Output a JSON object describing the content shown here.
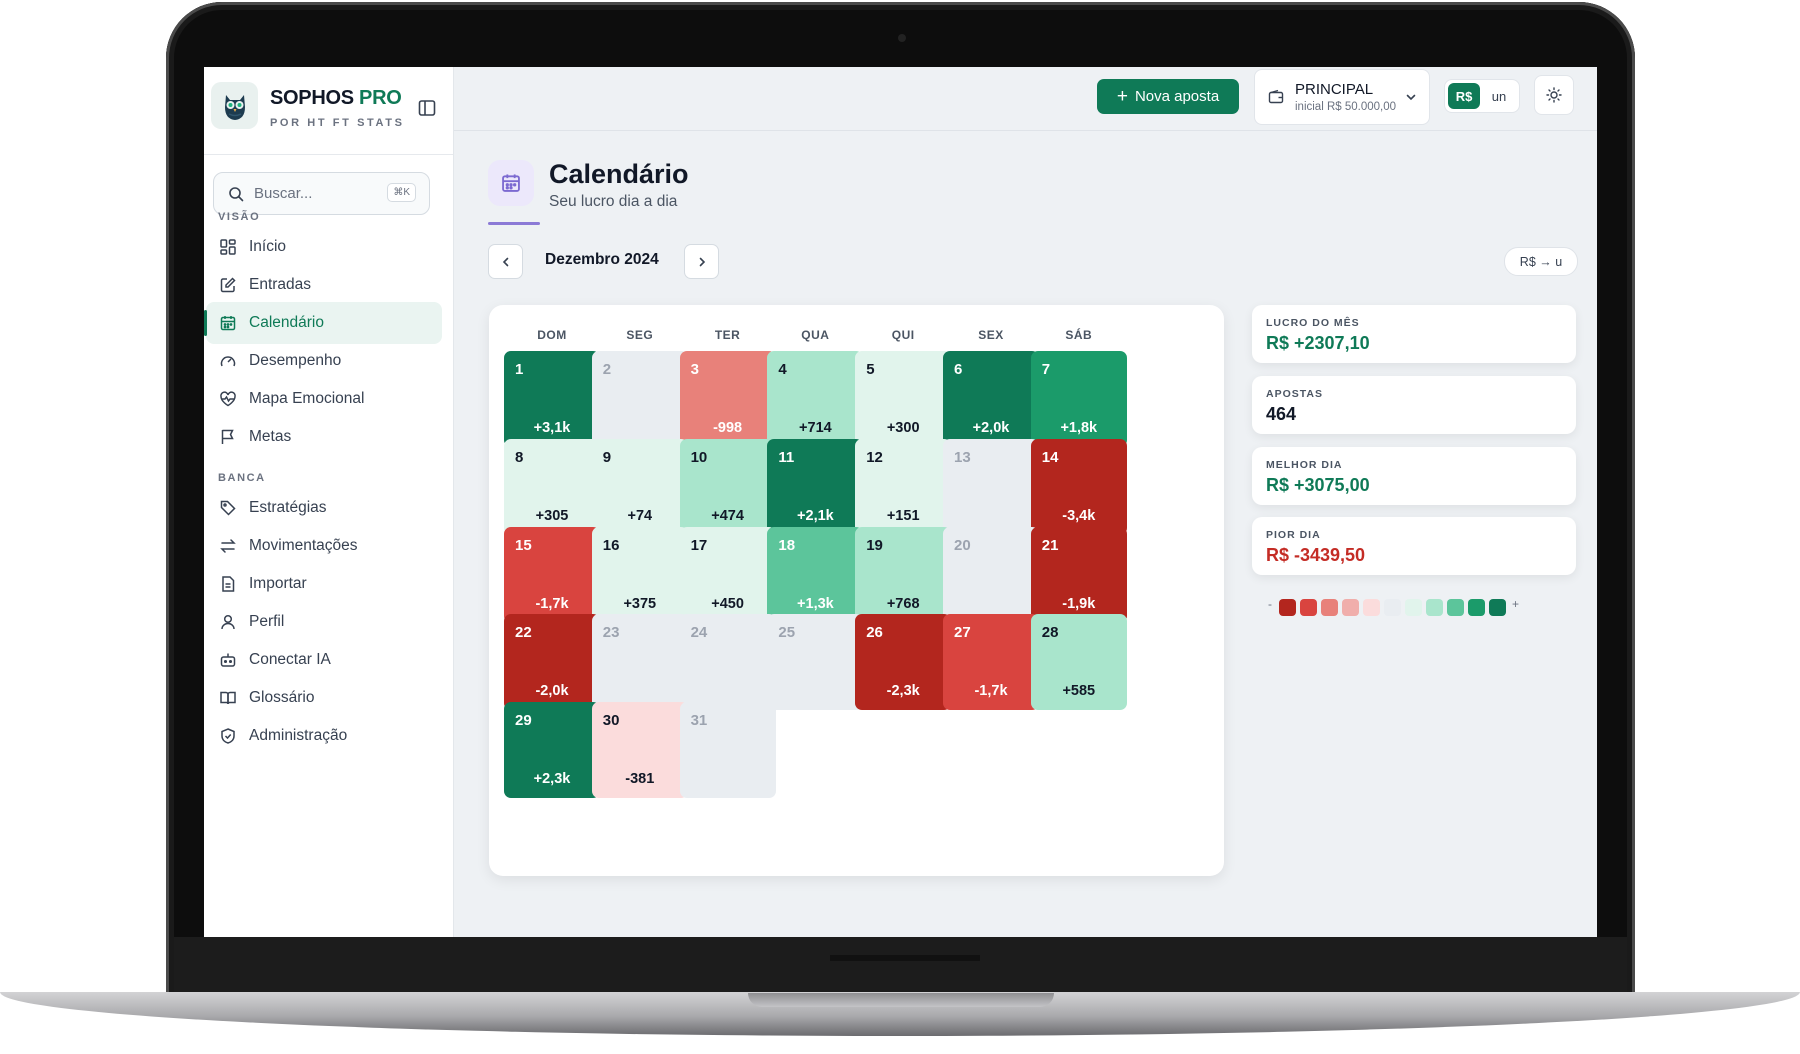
{
  "brand": {
    "name": "SOPHOS",
    "name_accent": "PRO",
    "subtitle": "POR HT FT STATS"
  },
  "search": {
    "placeholder": "Buscar...",
    "shortcut": "⌘K"
  },
  "sidebar": {
    "sections": [
      {
        "label": "VISÃO",
        "items": [
          {
            "label": "Início",
            "icon": "grid-icon"
          },
          {
            "label": "Entradas",
            "icon": "edit-icon"
          },
          {
            "label": "Calendário",
            "icon": "calendar-icon",
            "active": true
          },
          {
            "label": "Desempenho",
            "icon": "gauge-icon"
          },
          {
            "label": "Mapa Emocional",
            "icon": "heart-pulse-icon"
          },
          {
            "label": "Metas",
            "icon": "flag-icon"
          }
        ]
      },
      {
        "label": "BANCA",
        "items": [
          {
            "label": "Estratégias",
            "icon": "tag-icon"
          },
          {
            "label": "Movimentações",
            "icon": "swap-icon"
          },
          {
            "label": "Importar",
            "icon": "file-icon"
          },
          {
            "label": "Perfil",
            "icon": "user-icon"
          },
          {
            "label": "Conectar IA",
            "icon": "bot-icon"
          },
          {
            "label": "Glossário",
            "icon": "book-icon"
          },
          {
            "label": "Administração",
            "icon": "shield-icon"
          }
        ]
      }
    ]
  },
  "topbar": {
    "new_bet_label": "Nova aposta",
    "bank": {
      "name": "PRINCIPAL",
      "initial": "inicial R$ 50.000,00"
    },
    "unit_toggle": {
      "currency": "R$",
      "units": "un",
      "selected": "R$"
    }
  },
  "page": {
    "title": "Calendário",
    "subtitle": "Seu lucro dia a dia"
  },
  "calendar": {
    "month_label": "Dezembro 2024",
    "convert_label": "R$ → u",
    "weekdays": [
      "DOM",
      "SEG",
      "TER",
      "QUA",
      "QUI",
      "SEX",
      "SÁB"
    ],
    "days": [
      {
        "day": "1",
        "value": "+3,1k",
        "level": 4
      },
      {
        "day": "2",
        "value": "",
        "level": 0
      },
      {
        "day": "3",
        "value": "-998",
        "level": -2
      },
      {
        "day": "4",
        "value": "+714",
        "level": 2
      },
      {
        "day": "5",
        "value": "+300",
        "level": 1
      },
      {
        "day": "6",
        "value": "+2,0k",
        "level": 4
      },
      {
        "day": "7",
        "value": "+1,8k",
        "level": 3
      },
      {
        "day": "8",
        "value": "+305",
        "level": 1
      },
      {
        "day": "9",
        "value": "+74",
        "level": 1
      },
      {
        "day": "10",
        "value": "+474",
        "level": 2
      },
      {
        "day": "11",
        "value": "+2,1k",
        "level": 4
      },
      {
        "day": "12",
        "value": "+151",
        "level": 1
      },
      {
        "day": "13",
        "value": "",
        "level": 0
      },
      {
        "day": "14",
        "value": "-3,4k",
        "level": -4
      },
      {
        "day": "15",
        "value": "-1,7k",
        "level": -3
      },
      {
        "day": "16",
        "value": "+375",
        "level": 1
      },
      {
        "day": "17",
        "value": "+450",
        "level": 1
      },
      {
        "day": "18",
        "value": "+1,3k",
        "level": 3
      },
      {
        "day": "19",
        "value": "+768",
        "level": 2
      },
      {
        "day": "20",
        "value": "",
        "level": 0
      },
      {
        "day": "21",
        "value": "-1,9k",
        "level": -4
      },
      {
        "day": "22",
        "value": "-2,0k",
        "level": -4
      },
      {
        "day": "23",
        "value": "",
        "level": 0
      },
      {
        "day": "24",
        "value": "",
        "level": 0
      },
      {
        "day": "25",
        "value": "",
        "level": 0
      },
      {
        "day": "26",
        "value": "-2,3k",
        "level": -4
      },
      {
        "day": "27",
        "value": "-1,7k",
        "level": -3
      },
      {
        "day": "28",
        "value": "+585",
        "level": 2
      },
      {
        "day": "29",
        "value": "+2,3k",
        "level": 4
      },
      {
        "day": "30",
        "value": "-381",
        "level": -1
      },
      {
        "day": "31",
        "value": "",
        "level": 0
      }
    ]
  },
  "stats": [
    {
      "label": "LUCRO DO MÊS",
      "value": "R$ +2307,10",
      "tone": "positive"
    },
    {
      "label": "APOSTAS",
      "value": "464",
      "tone": "neutral"
    },
    {
      "label": "MELHOR DIA",
      "value": "R$ +3075,00",
      "tone": "positive"
    },
    {
      "label": "PIOR DIA",
      "value": "R$ -3439,50",
      "tone": "negative"
    }
  ],
  "legend": {
    "minus": "-",
    "plus": "+",
    "colors": [
      "#b3261e",
      "#d9443f",
      "#e8817a",
      "#f0aeab",
      "#fbdcdc",
      "#e9edf1",
      "#e1f4ec",
      "#a9e5cc",
      "#5cc59b",
      "#1b9b6a",
      "#0f7a57"
    ]
  },
  "colors": {
    "accent": "#0f7a57",
    "negative": "#c42c25"
  }
}
